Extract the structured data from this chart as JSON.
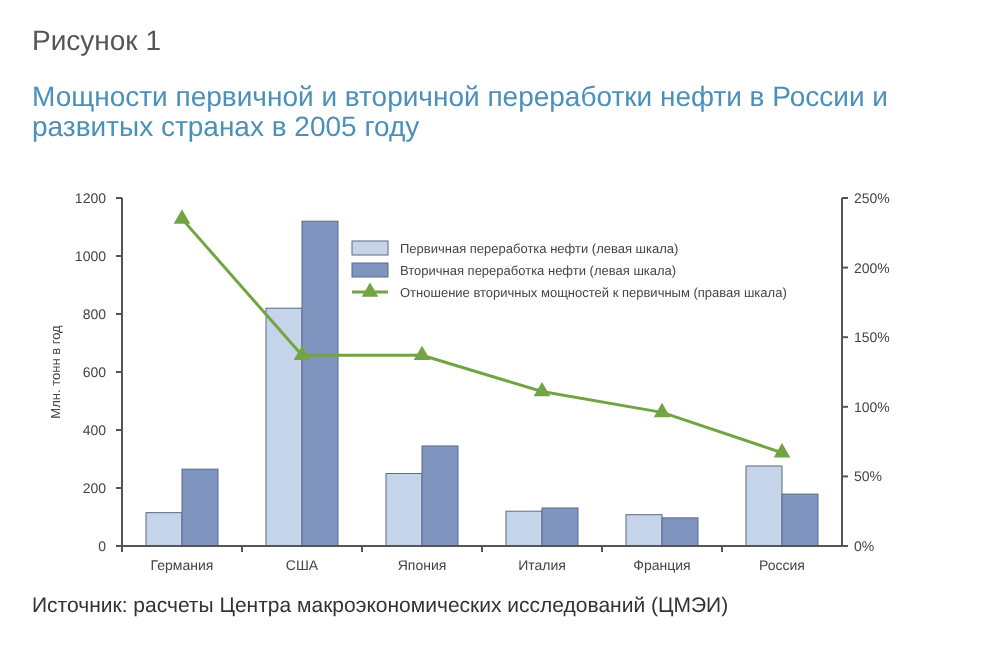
{
  "chart_data": {
    "type": "bar",
    "title": "Рисунок 1",
    "subtitle": "Мощности первичной и вторичной переработки нефти в России и развитых странах в 2005 году",
    "ylabel": "Млн. тонн в год",
    "categories": [
      "Германия",
      "США",
      "Япония",
      "Италия",
      "Франция",
      "Россия"
    ],
    "series": [
      {
        "name": "Первичная переработка нефти (левая шкала)",
        "color": "#c6d4e9",
        "values": [
          115,
          820,
          250,
          120,
          108,
          276
        ]
      },
      {
        "name": "Вторичная переработка нефти (левая шкала)",
        "color": "#7f95bf",
        "values": [
          265,
          1120,
          345,
          131,
          97,
          179
        ]
      },
      {
        "name": "Отношение вторичных мощностей к первичным (правая шкала)",
        "type": "line",
        "axis": "y2",
        "color": "#72a444",
        "marker": "triangle",
        "values": [
          235,
          137,
          137,
          111,
          96,
          67
        ]
      }
    ],
    "ylim": [
      0,
      1200
    ],
    "yticks": [
      0,
      200,
      400,
      600,
      800,
      1000,
      1200
    ],
    "y2lim": [
      0,
      250
    ],
    "y2ticks": [
      {
        "value": 0,
        "label": "0%"
      },
      {
        "value": 50,
        "label": "50%"
      },
      {
        "value": 100,
        "label": "100%"
      },
      {
        "value": 150,
        "label": "150%"
      },
      {
        "value": 200,
        "label": "200%"
      },
      {
        "value": 250,
        "label": "250%"
      }
    ],
    "legend": "top right",
    "grid": false,
    "annotations": [
      "Источник: расчеты Центра макроэкономических исследований (ЦМЭИ)"
    ]
  }
}
